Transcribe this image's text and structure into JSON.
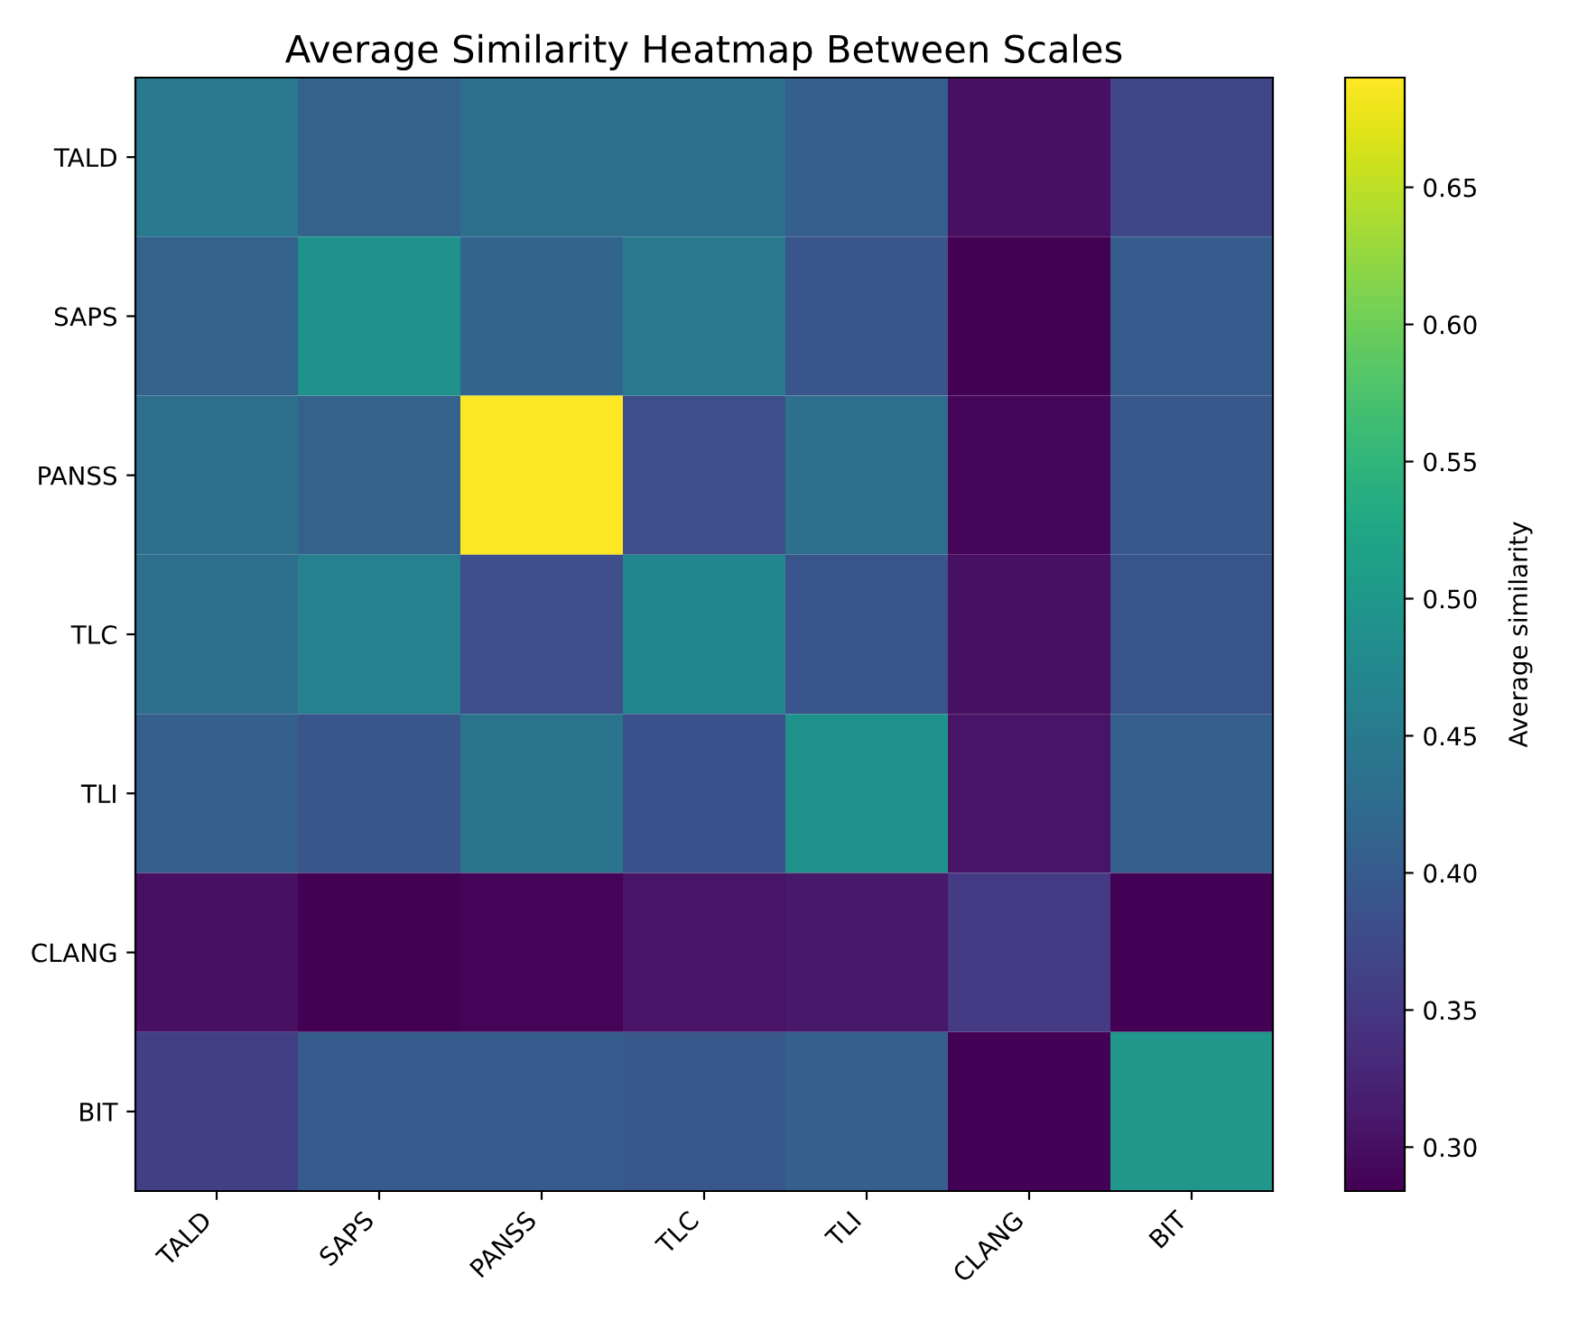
{
  "chart_data": {
    "type": "heatmap",
    "title": "Average Similarity Heatmap Between Scales",
    "clabel": "Average similarity",
    "categories": [
      "TALD",
      "SAPS",
      "PANSS",
      "TLC",
      "TLI",
      "CLANG",
      "BIT"
    ],
    "y_categories": [
      "TALD",
      "SAPS",
      "PANSS",
      "TLC",
      "TLI",
      "CLANG",
      "BIT"
    ],
    "cells": [
      [
        0.45,
        0.41,
        0.43,
        0.43,
        0.405,
        0.3,
        0.37
      ],
      [
        0.41,
        0.49,
        0.415,
        0.45,
        0.39,
        0.285,
        0.4
      ],
      [
        0.43,
        0.41,
        0.69,
        0.38,
        0.43,
        0.29,
        0.395
      ],
      [
        0.43,
        0.46,
        0.38,
        0.47,
        0.39,
        0.3,
        0.39
      ],
      [
        0.405,
        0.39,
        0.44,
        0.385,
        0.49,
        0.305,
        0.405
      ],
      [
        0.3,
        0.285,
        0.288,
        0.305,
        0.31,
        0.355,
        0.286
      ],
      [
        0.36,
        0.4,
        0.4,
        0.395,
        0.405,
        0.287,
        0.5
      ]
    ],
    "clim": [
      0.284,
      0.69
    ],
    "cticks": [
      {
        "value": 0.3,
        "label": "0.30"
      },
      {
        "value": 0.35,
        "label": "0.35"
      },
      {
        "value": 0.4,
        "label": "0.40"
      },
      {
        "value": 0.45,
        "label": "0.45"
      },
      {
        "value": 0.5,
        "label": "0.50"
      },
      {
        "value": 0.55,
        "label": "0.55"
      },
      {
        "value": 0.6,
        "label": "0.60"
      },
      {
        "value": 0.65,
        "label": "0.65"
      }
    ]
  }
}
